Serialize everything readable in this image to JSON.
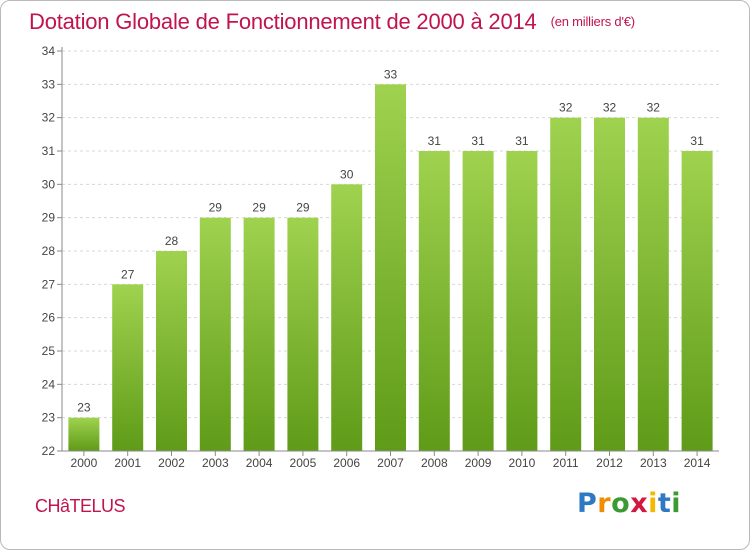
{
  "header": {
    "title": "Dotation Globale de Fonctionnement de 2000 à 2014",
    "unit": "(en milliers d'€)"
  },
  "footer": {
    "town": "CHâTELUS",
    "brand_letters": [
      "P",
      "r",
      "o",
      "x",
      "i",
      "t",
      "i"
    ],
    "brand_colors": [
      "#2f78c4",
      "#f28c00",
      "#3c9a33",
      "#d4173f",
      "#f5b800",
      "#2f78c4",
      "#3c9a33"
    ]
  },
  "colors": {
    "title": "#c0144f",
    "bar_top": "#9fd24f",
    "bar_bottom": "#5f9b18",
    "grid": "#d8d8d8",
    "axis": "#8a8a8a",
    "label": "#444444"
  },
  "chart_data": {
    "type": "bar",
    "categories": [
      "2000",
      "2001",
      "2002",
      "2003",
      "2004",
      "2005",
      "2006",
      "2007",
      "2008",
      "2009",
      "2010",
      "2011",
      "2012",
      "2013",
      "2014"
    ],
    "values": [
      23,
      27,
      28,
      29,
      29,
      29,
      30,
      33,
      31,
      31,
      31,
      32,
      32,
      32,
      31
    ],
    "ylim": [
      22,
      34
    ],
    "yticks": [
      22,
      23,
      24,
      25,
      26,
      27,
      28,
      29,
      30,
      31,
      32,
      33,
      34
    ],
    "grid": true,
    "data_labels": true
  }
}
